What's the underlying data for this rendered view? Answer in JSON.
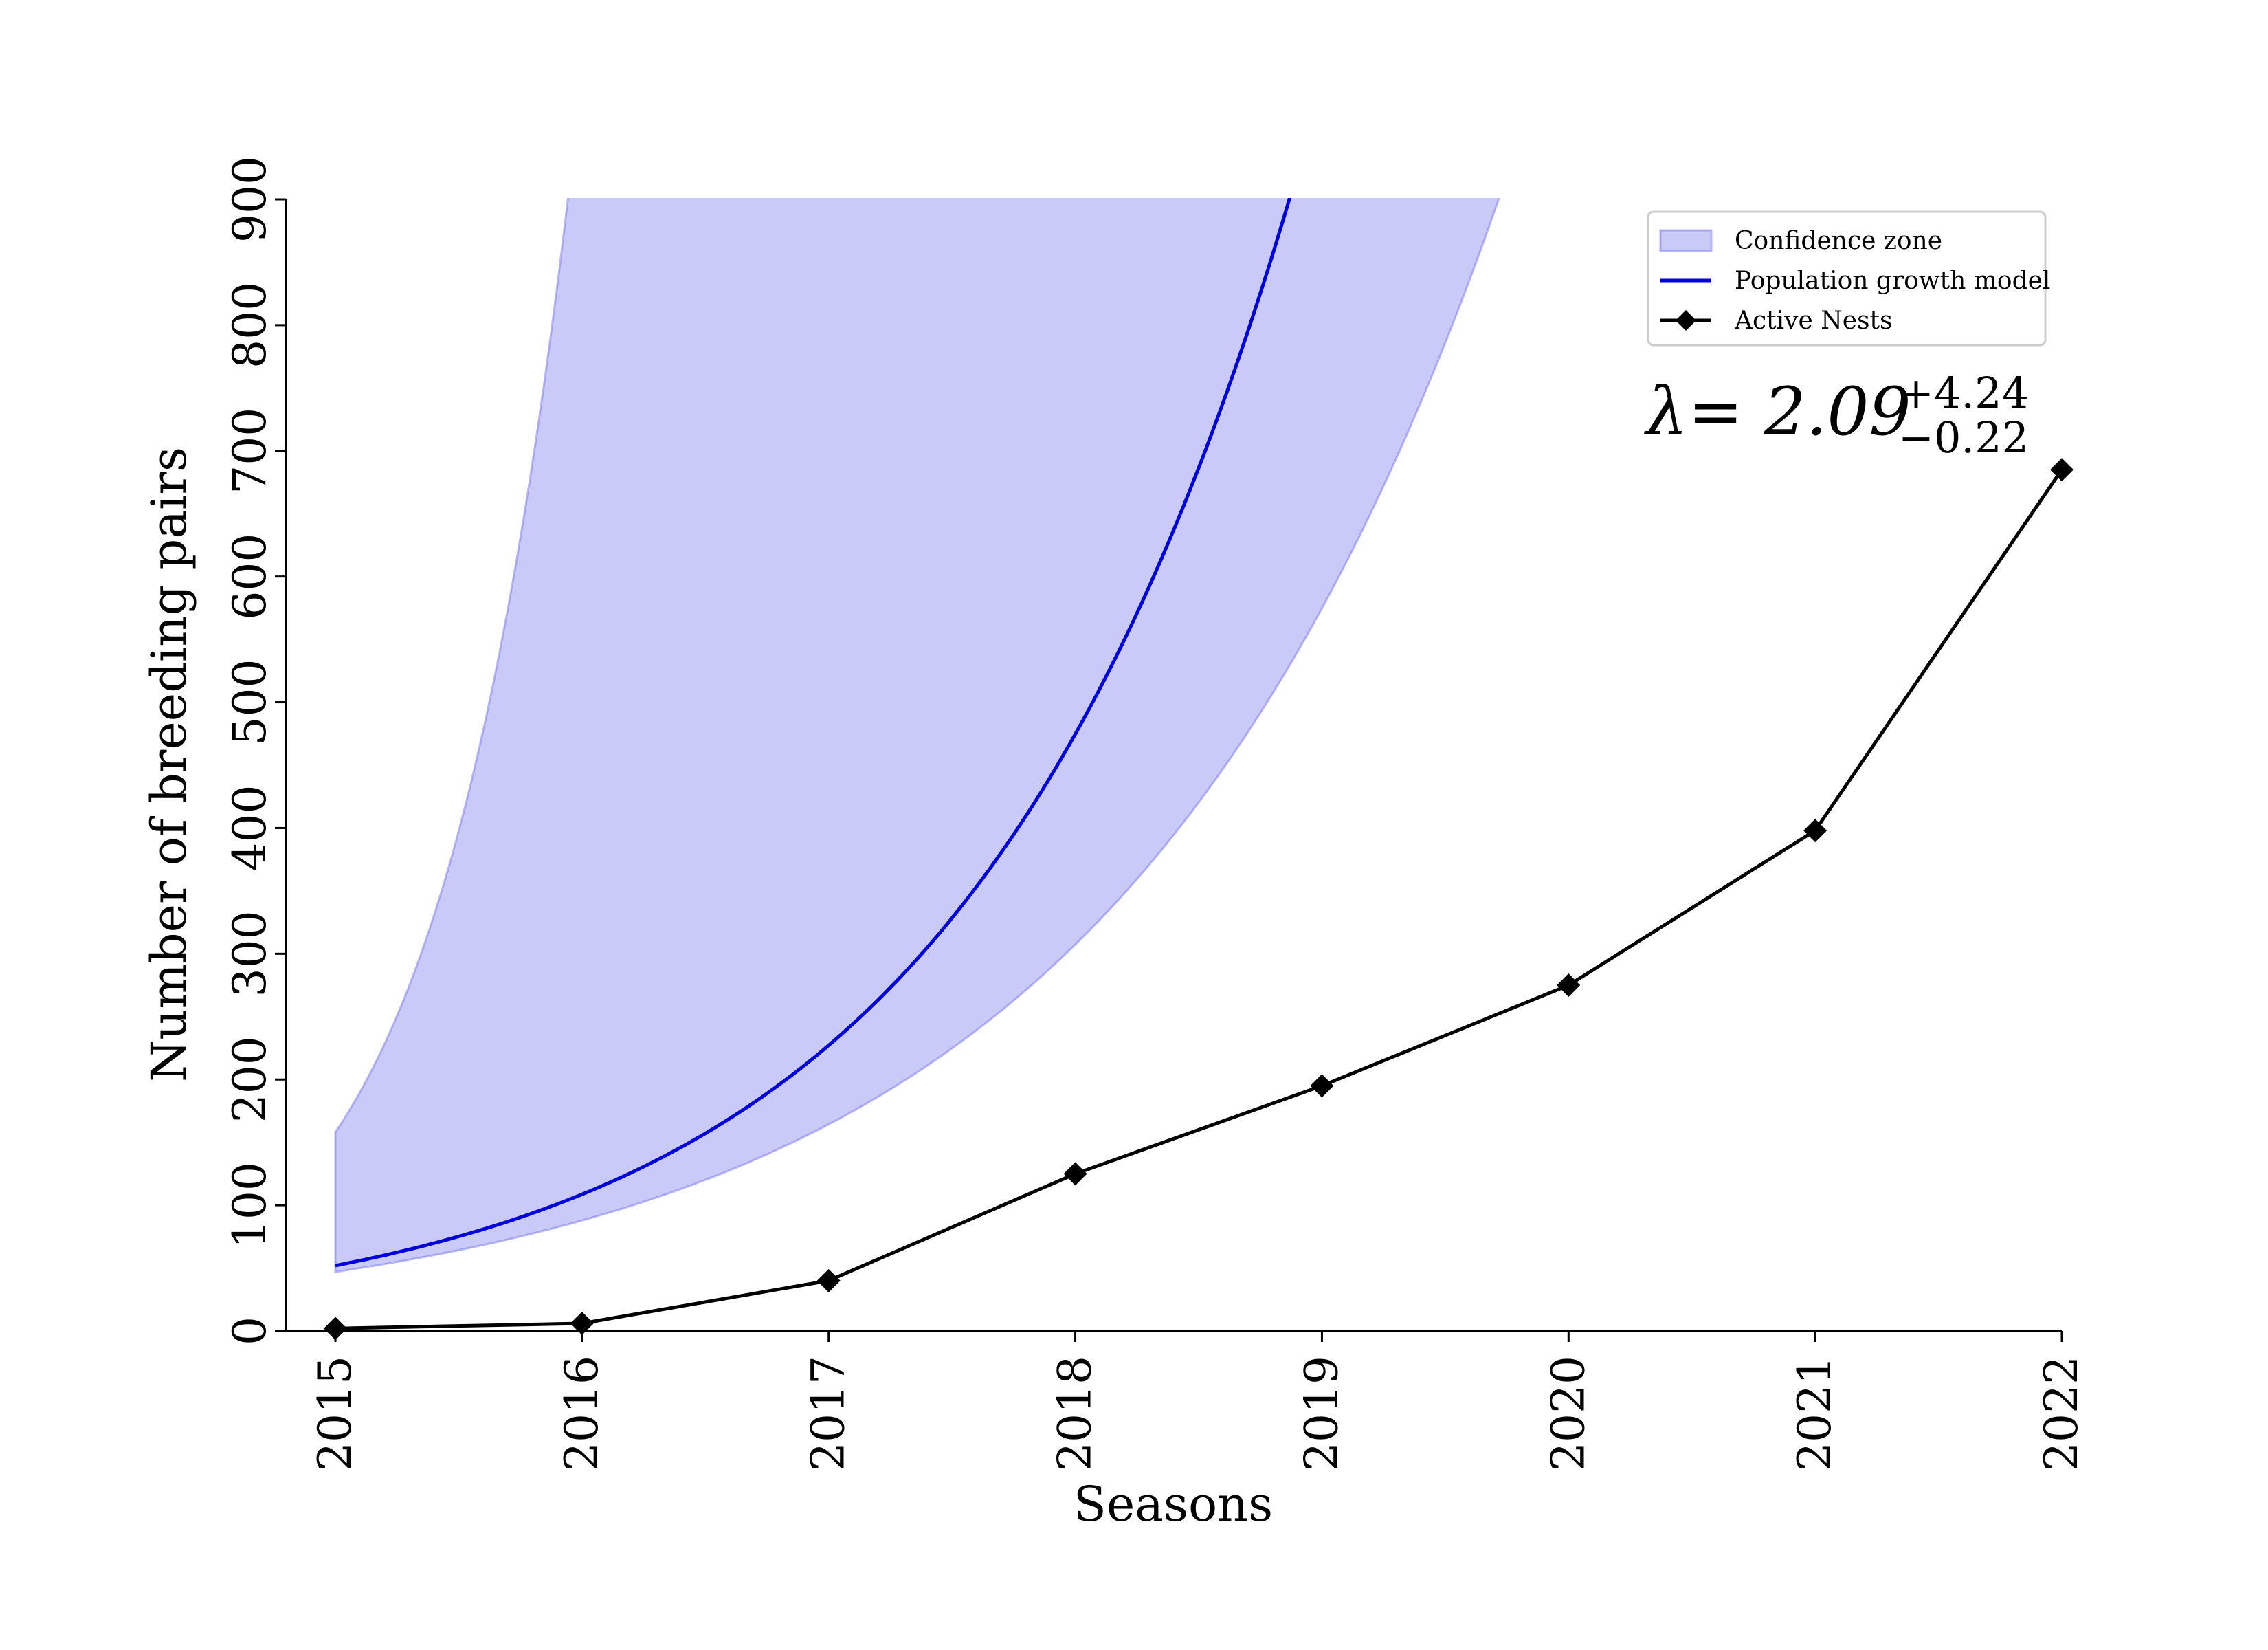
{
  "chart_data": {
    "type": "line",
    "title": "",
    "xlabel": "Seasons",
    "ylabel": "Number of breeding pairs",
    "x": [
      2015,
      2016,
      2017,
      2018,
      2019,
      2020,
      2021,
      2022
    ],
    "x_tick_labels": [
      "2015",
      "2016",
      "2017",
      "2018",
      "2019",
      "2020",
      "2021",
      "2022"
    ],
    "y_ticks": [
      0,
      100,
      200,
      300,
      400,
      500,
      600,
      700,
      800,
      900
    ],
    "y_tick_labels": [
      "0",
      "100",
      "200",
      "300",
      "400",
      "500",
      "600",
      "700",
      "800",
      "900"
    ],
    "xlim": [
      2015,
      2022
    ],
    "ylim": [
      0,
      900
    ],
    "grid": false,
    "legend_position": "top-right",
    "series": [
      {
        "name": "Active Nests",
        "kind": "line-with-diamond-markers",
        "color": "#000000",
        "values": [
          2,
          6,
          40,
          125,
          195,
          275,
          398,
          685
        ]
      },
      {
        "name": "Population growth model",
        "kind": "exponential-curve",
        "color": "#0000dd",
        "base_value": 52,
        "growth_rate": 2.09
      }
    ],
    "confidence_band": {
      "name": "Confidence zone",
      "color": "#8080f0",
      "lower": {
        "base_value": 47,
        "growth_rate": 1.87
      },
      "upper": {
        "base_value": 158,
        "growth_rate": 6.33
      }
    },
    "annotation": {
      "main": "λ= 2.09",
      "upper": "+4.24",
      "lower": "−0.22"
    }
  }
}
